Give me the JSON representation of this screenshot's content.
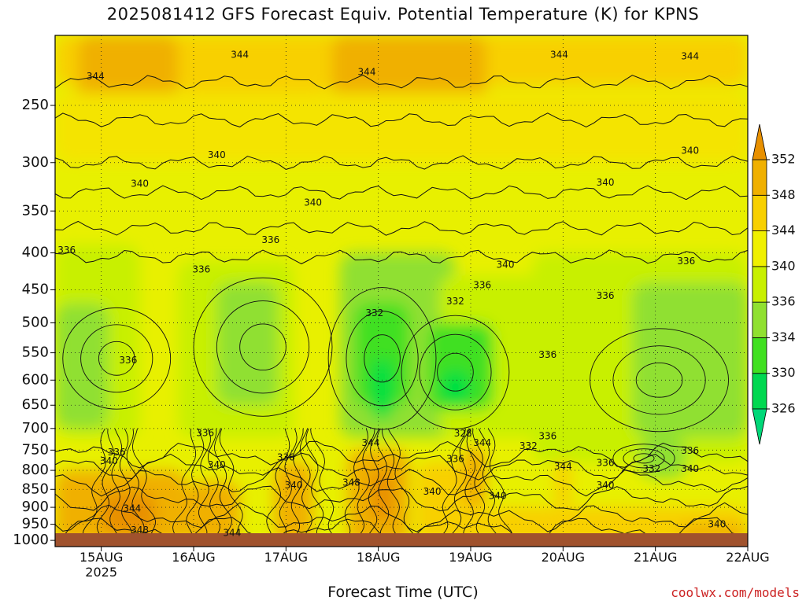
{
  "chart_data": {
    "type": "heatmap",
    "title": "2025081412 GFS Forecast Equiv. Potential Temperature (K) for KPNS",
    "xlabel": "Forecast Time (UTC)",
    "credit": "coolwx.com/models",
    "x_ticks": [
      {
        "label": "15AUG",
        "sublabel": "2025",
        "hour": 0
      },
      {
        "label": "16AUG",
        "hour": 24
      },
      {
        "label": "17AUG",
        "hour": 48
      },
      {
        "label": "18AUG",
        "hour": 72
      },
      {
        "label": "19AUG",
        "hour": 96
      },
      {
        "label": "20AUG",
        "hour": 120
      },
      {
        "label": "21AUG",
        "hour": 144
      },
      {
        "label": "22AUG",
        "hour": 168
      }
    ],
    "xlim_hours": [
      -12,
      168
    ],
    "y_ticks": [
      250,
      300,
      350,
      400,
      450,
      500,
      550,
      600,
      650,
      700,
      750,
      800,
      850,
      900,
      950,
      1000
    ],
    "ylim": [
      200,
      1020
    ],
    "y_scale": "log (pressure)",
    "colorbar": {
      "levels": [
        326,
        330,
        334,
        336,
        340,
        344,
        348,
        352
      ],
      "colors": [
        "#00e040",
        "#40e020",
        "#90e030",
        "#c8f000",
        "#f0f000",
        "#f8d000",
        "#f0b000",
        "#e89000"
      ],
      "extend": "both"
    },
    "contour_labels": [
      {
        "t": -1.5,
        "p": 228,
        "text": "344"
      },
      {
        "t": 36,
        "p": 213,
        "text": "344"
      },
      {
        "t": 69,
        "p": 225,
        "text": "344"
      },
      {
        "t": 119,
        "p": 213,
        "text": "344"
      },
      {
        "t": 153,
        "p": 214,
        "text": "344"
      },
      {
        "t": 10,
        "p": 321,
        "text": "340"
      },
      {
        "t": 30,
        "p": 293,
        "text": "340"
      },
      {
        "t": 55,
        "p": 341,
        "text": "340"
      },
      {
        "t": 105,
        "p": 416,
        "text": "340"
      },
      {
        "t": 131,
        "p": 320,
        "text": "340"
      },
      {
        "t": 153,
        "p": 289,
        "text": "340"
      },
      {
        "t": -9,
        "p": 397,
        "text": "336"
      },
      {
        "t": 26,
        "p": 422,
        "text": "336"
      },
      {
        "t": 44,
        "p": 384,
        "text": "336"
      },
      {
        "t": 99,
        "p": 444,
        "text": "336"
      },
      {
        "t": 131,
        "p": 459,
        "text": "336"
      },
      {
        "t": 152,
        "p": 411,
        "text": "336"
      },
      {
        "t": 71,
        "p": 485,
        "text": "332"
      },
      {
        "t": 92,
        "p": 467,
        "text": "332"
      },
      {
        "t": 7,
        "p": 564,
        "text": "336"
      },
      {
        "t": 116,
        "p": 554,
        "text": "336"
      },
      {
        "t": 27,
        "p": 711,
        "text": "336"
      },
      {
        "t": 4,
        "p": 756,
        "text": "336"
      },
      {
        "t": 2,
        "p": 777,
        "text": "340"
      },
      {
        "t": 30,
        "p": 787,
        "text": "340"
      },
      {
        "t": 48,
        "p": 768,
        "text": "336"
      },
      {
        "t": 70,
        "p": 734,
        "text": "344"
      },
      {
        "t": 94,
        "p": 712,
        "text": "328"
      },
      {
        "t": 99,
        "p": 734,
        "text": "344"
      },
      {
        "t": 111,
        "p": 741,
        "text": "332"
      },
      {
        "t": 116,
        "p": 718,
        "text": "336"
      },
      {
        "t": 92,
        "p": 772,
        "text": "336"
      },
      {
        "t": 120,
        "p": 791,
        "text": "344"
      },
      {
        "t": 131,
        "p": 782,
        "text": "336"
      },
      {
        "t": 143,
        "p": 797,
        "text": "332"
      },
      {
        "t": 153,
        "p": 752,
        "text": "336"
      },
      {
        "t": 153,
        "p": 797,
        "text": "340"
      },
      {
        "t": 131,
        "p": 840,
        "text": "340"
      },
      {
        "t": 50,
        "p": 840,
        "text": "340"
      },
      {
        "t": 65,
        "p": 833,
        "text": "348"
      },
      {
        "t": 86,
        "p": 857,
        "text": "340"
      },
      {
        "t": 103,
        "p": 869,
        "text": "340"
      },
      {
        "t": 8,
        "p": 904,
        "text": "344"
      },
      {
        "t": 10,
        "p": 969,
        "text": "348"
      },
      {
        "t": 34,
        "p": 977,
        "text": "344"
      },
      {
        "t": 160,
        "p": 951,
        "text": "340"
      }
    ]
  }
}
